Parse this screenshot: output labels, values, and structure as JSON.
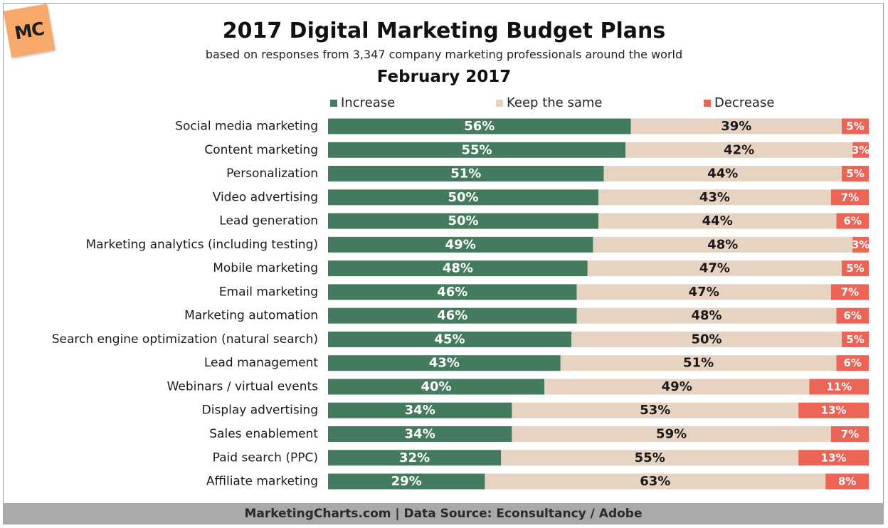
{
  "logo": {
    "text": "MC"
  },
  "header": {
    "title": "2017 Digital Marketing Budget Plans",
    "subtitle": "based on responses from 3,347 company marketing professionals around the world",
    "date": "February 2017"
  },
  "colors": {
    "increase": "#447a5d",
    "keep": "#e6d3c2",
    "decrease": "#ec6456"
  },
  "chart_data": {
    "type": "bar",
    "orientation": "horizontal",
    "stacked": true,
    "percent_stacked": true,
    "legend_position": "top",
    "categories": [
      "Social media marketing",
      "Content marketing",
      "Personalization",
      "Video advertising",
      "Lead generation",
      "Marketing analytics (including testing)",
      "Mobile marketing",
      "Email marketing",
      "Marketing automation",
      "Search engine optimization (natural search)",
      "Lead management",
      "Webinars / virtual events",
      "Display advertising",
      "Sales enablement",
      "Paid search (PPC)",
      "Affiliate marketing"
    ],
    "series": [
      {
        "name": "Increase",
        "values": [
          56,
          55,
          51,
          50,
          50,
          49,
          48,
          46,
          46,
          45,
          43,
          40,
          34,
          34,
          32,
          29
        ]
      },
      {
        "name": "Keep the same",
        "values": [
          39,
          42,
          44,
          43,
          44,
          48,
          47,
          47,
          48,
          50,
          51,
          49,
          53,
          59,
          55,
          63
        ]
      },
      {
        "name": "Decrease",
        "values": [
          5,
          3,
          5,
          7,
          6,
          3,
          5,
          7,
          6,
          5,
          6,
          11,
          13,
          7,
          13,
          8
        ]
      }
    ],
    "unit": "%"
  },
  "footer": {
    "text": "MarketingCharts.com | Data Source: Econsultancy / Adobe"
  }
}
